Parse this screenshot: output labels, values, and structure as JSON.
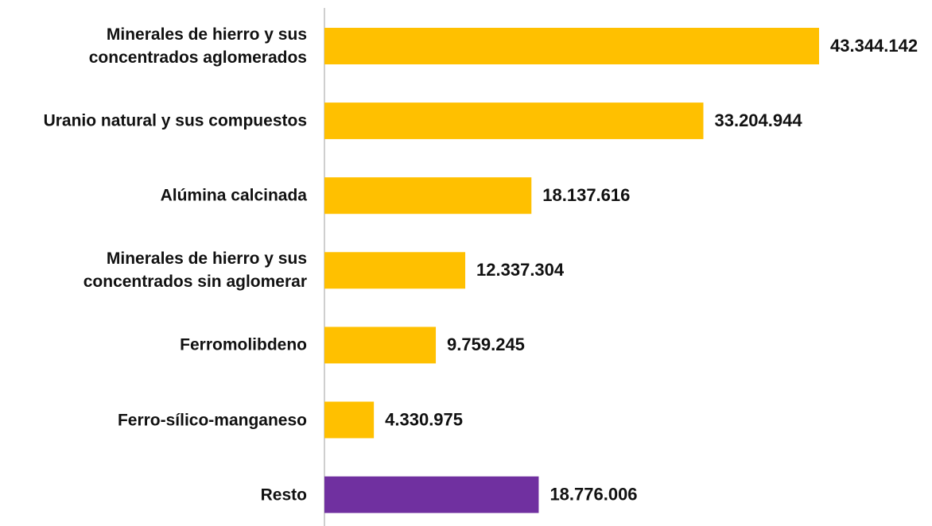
{
  "chart_data": {
    "type": "bar",
    "orientation": "horizontal",
    "categories": [
      "Minerales de hierro y sus\nconcentrados aglomerados",
      "Uranio natural y sus compuestos",
      "Alúmina calcinada",
      "Minerales de hierro y sus\nconcentrados sin aglomerar",
      "Ferromolibdeno",
      "Ferro-sílico-manganeso",
      "Resto"
    ],
    "values": [
      43344142,
      33204944,
      18137616,
      12337304,
      9759245,
      4330975,
      18776006
    ],
    "value_labels": [
      "43.344.142",
      "33.204.944",
      "18.137.616",
      "12.337.304",
      "9.759.245",
      "4.330.975",
      "18.776.006"
    ],
    "colors": [
      "#ffc000",
      "#ffc000",
      "#ffc000",
      "#ffc000",
      "#ffc000",
      "#ffc000",
      "#7030a0"
    ]
  }
}
